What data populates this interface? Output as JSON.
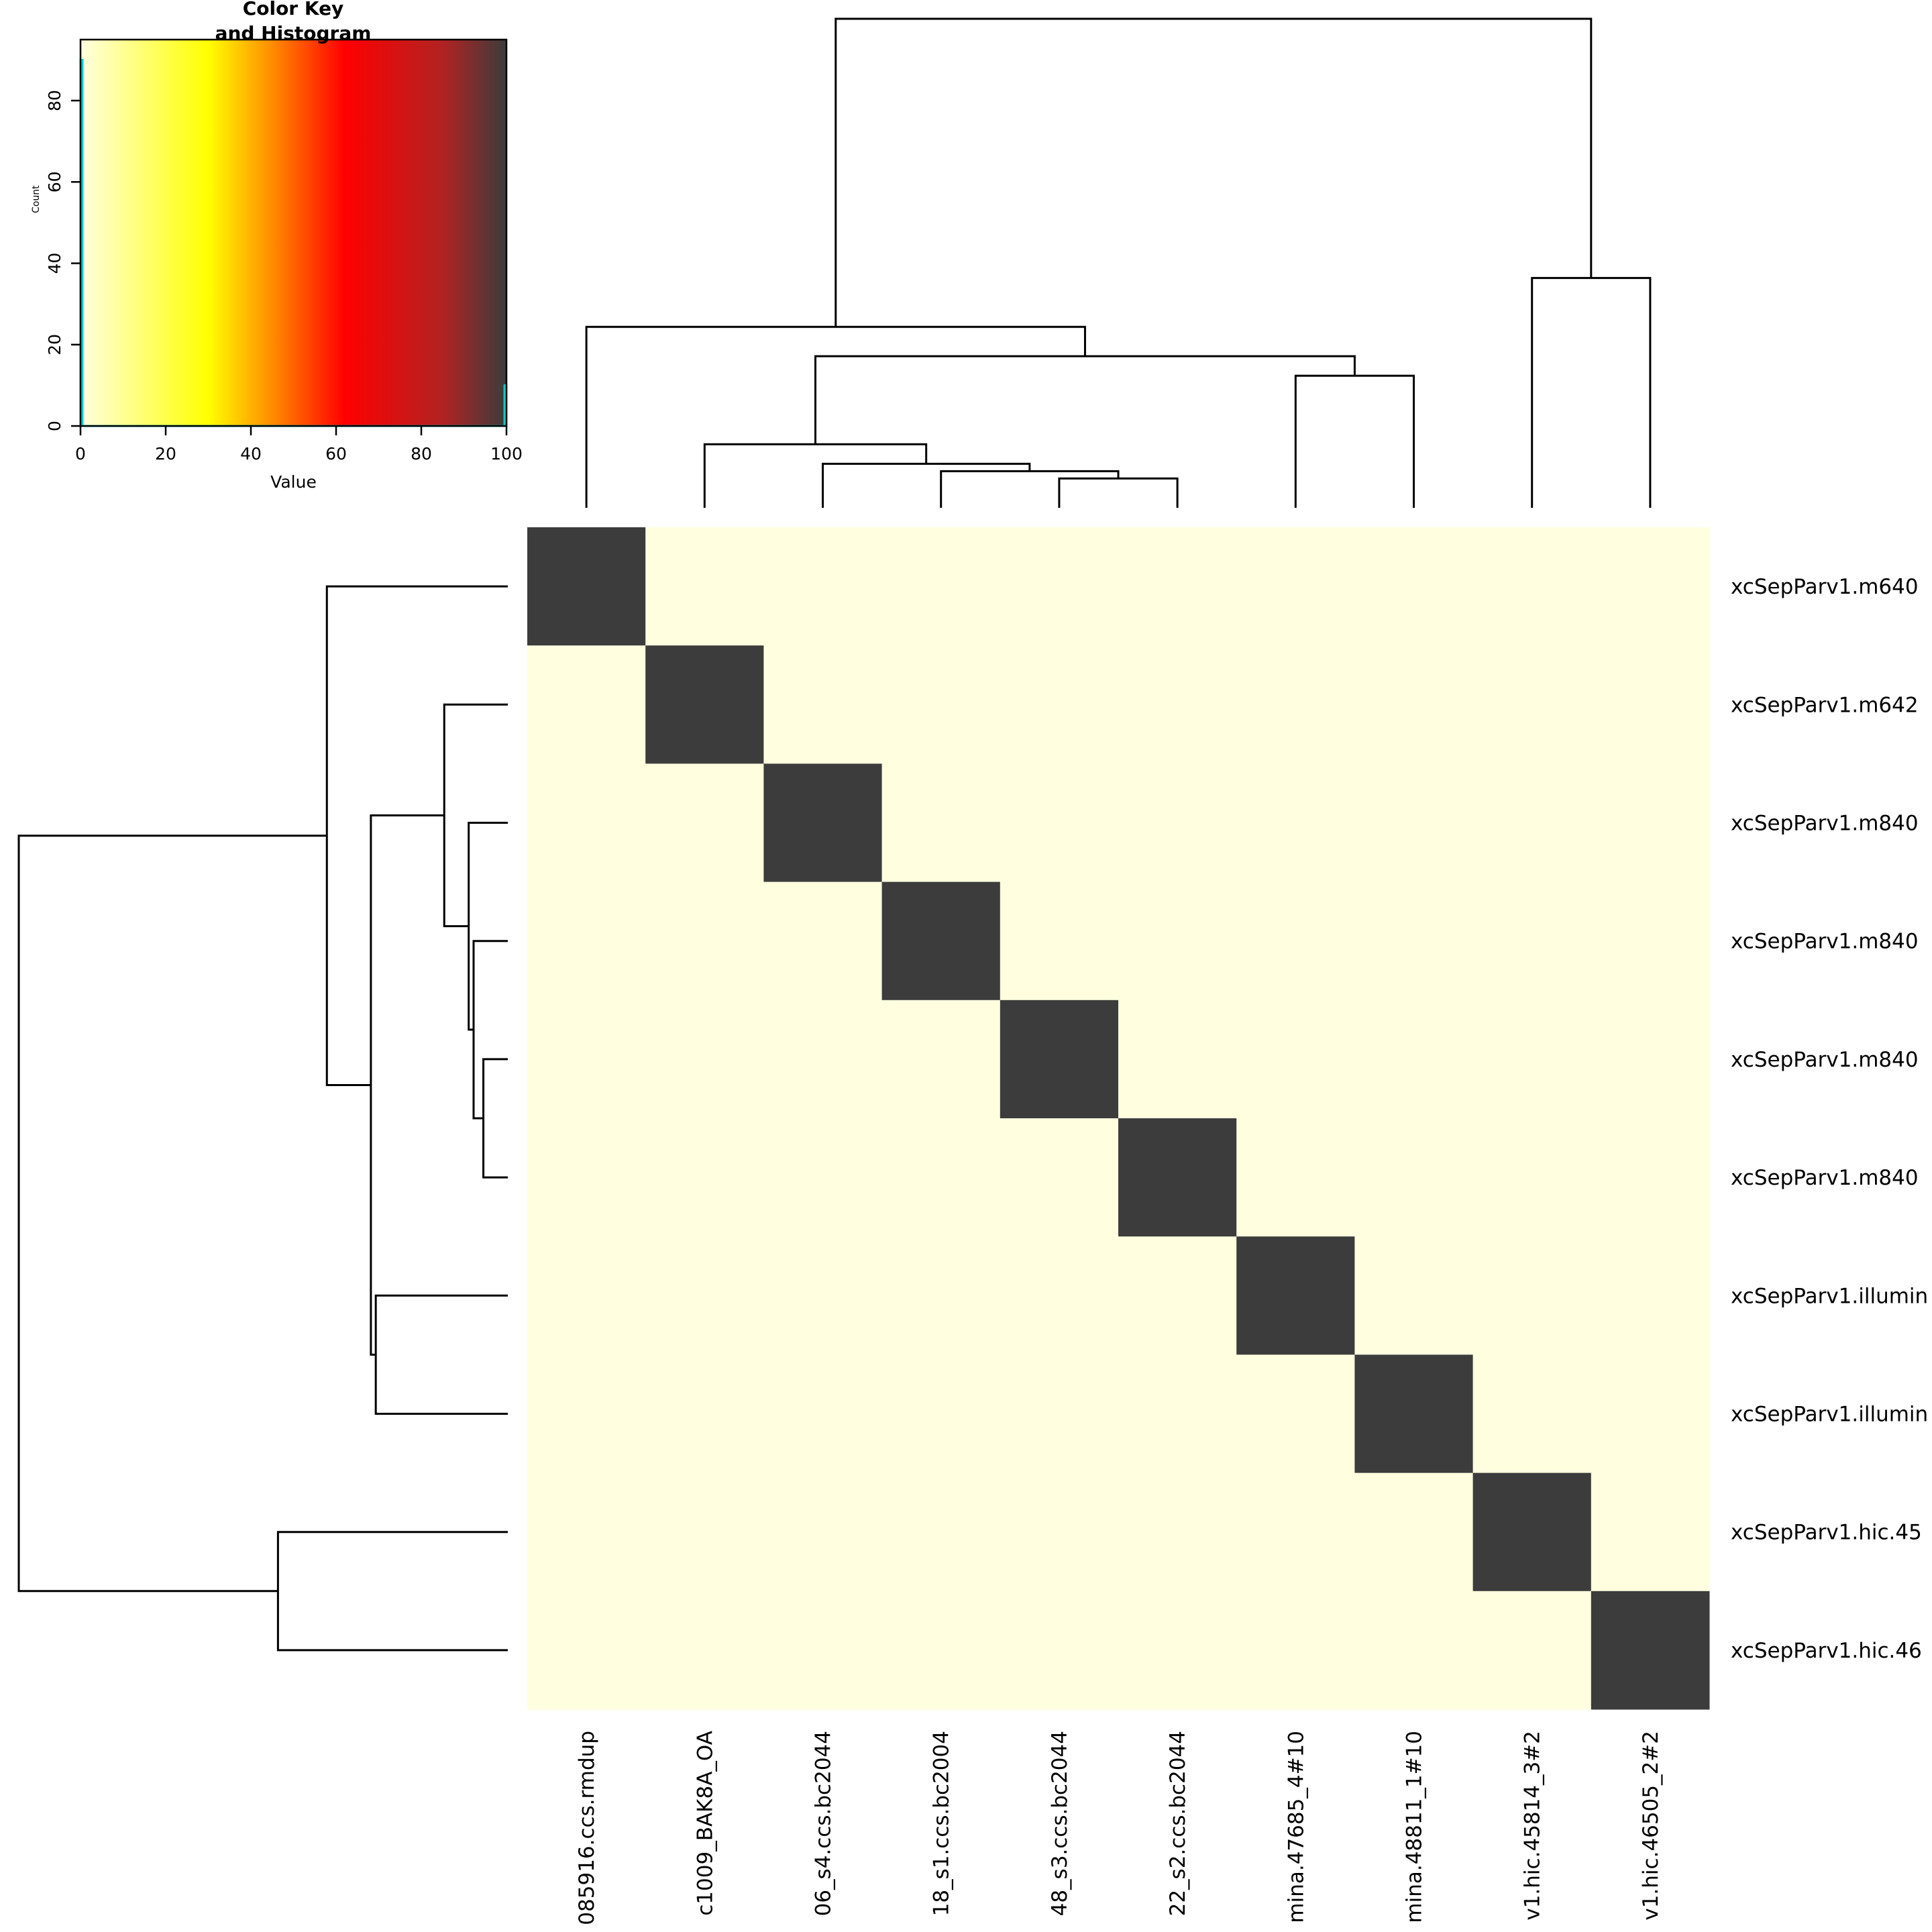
{
  "chart_data": {
    "type": "heatmap",
    "columns": [
      "085916.ccs.rmdup",
      "c1009_BAK8A_OA",
      "06_s4.ccs.bc2044",
      "18_s1.ccs.bc2004",
      "48_s3.ccs.bc2044",
      "22_s2.ccs.bc2044",
      "mina.47685_4#10",
      "mina.48811_1#10",
      "v1.hic.45814_3#2",
      "v1.hic.46505_2#2"
    ],
    "rows": [
      "xcSepParv1.m640",
      "xcSepParv1.m642",
      "xcSepParv1.m840",
      "xcSepParv1.m840",
      "xcSepParv1.m840",
      "xcSepParv1.m840",
      "xcSepParv1.illumin",
      "xcSepParv1.illumin",
      "xcSepParv1.hic.45",
      "xcSepParv1.hic.46"
    ],
    "values": [
      [
        100,
        0,
        0,
        0,
        0,
        0,
        0,
        0,
        0,
        0
      ],
      [
        0,
        100,
        0,
        0,
        0,
        0,
        0,
        0,
        0,
        0
      ],
      [
        0,
        0,
        100,
        0,
        0,
        0,
        0,
        0,
        0,
        0
      ],
      [
        0,
        0,
        0,
        100,
        0,
        0,
        0,
        0,
        0,
        0
      ],
      [
        0,
        0,
        0,
        0,
        100,
        0,
        0,
        0,
        0,
        0
      ],
      [
        0,
        0,
        0,
        0,
        0,
        100,
        0,
        0,
        0,
        0
      ],
      [
        0,
        0,
        0,
        0,
        0,
        0,
        100,
        0,
        0,
        0
      ],
      [
        0,
        0,
        0,
        0,
        0,
        0,
        0,
        100,
        0,
        0
      ],
      [
        0,
        0,
        0,
        0,
        0,
        0,
        0,
        0,
        100,
        0
      ],
      [
        0,
        0,
        0,
        0,
        0,
        0,
        0,
        0,
        0,
        100
      ]
    ],
    "color_scale": {
      "range": [
        0,
        100
      ],
      "stops": [
        [
          0,
          "#ffffe0"
        ],
        [
          30,
          "#ffff00"
        ],
        [
          45,
          "#ff8c00"
        ],
        [
          62,
          "#ff0000"
        ],
        [
          85,
          "#b22222"
        ],
        [
          100,
          "#3c3c3c"
        ]
      ]
    },
    "color_key": {
      "title": "Color Key\nand Histogram",
      "xlabel": "Value",
      "ylabel": "Count",
      "xticks": [
        0,
        20,
        40,
        60,
        80,
        100
      ],
      "yticks": [
        0,
        20,
        40,
        60,
        80
      ],
      "ylim": [
        0,
        95
      ],
      "histogram_color": "#00cdcd",
      "histogram": [
        {
          "x": 0,
          "count": 90
        },
        {
          "x": 100,
          "count": 10
        }
      ]
    },
    "column_dendrogram": [
      {
        "left": 7,
        "right": 8,
        "height": 0.27
      },
      {
        "left": 5,
        "right": 6,
        "height": 0.06
      },
      {
        "left": 4,
        "right": "n2",
        "height": 0.075
      },
      {
        "left": 3,
        "right": "n3",
        "height": 0.09
      },
      {
        "left": 2,
        "right": "n4",
        "height": 0.13
      },
      {
        "left": "n5",
        "right": "n1",
        "height": 0.31
      },
      {
        "left": 9,
        "right": 10,
        "height": 0.47
      },
      {
        "left": 1,
        "right": "n6",
        "height": 0.37
      },
      {
        "left": "n8",
        "right": "n7",
        "height": 1.0
      }
    ],
    "row_dendrogram": [
      {
        "left": 7,
        "right": 8,
        "height": 0.27
      },
      {
        "left": 5,
        "right": 6,
        "height": 0.05
      },
      {
        "left": 4,
        "right": "n2",
        "height": 0.07
      },
      {
        "left": 3,
        "right": "n3",
        "height": 0.08
      },
      {
        "left": 2,
        "right": "n4",
        "height": 0.13
      },
      {
        "left": "n5",
        "right": "n1",
        "height": 0.28
      },
      {
        "left": 9,
        "right": 10,
        "height": 0.47
      },
      {
        "left": 1,
        "right": "n6",
        "height": 0.37
      },
      {
        "left": "n8",
        "right": "n7",
        "height": 1.0
      }
    ]
  }
}
